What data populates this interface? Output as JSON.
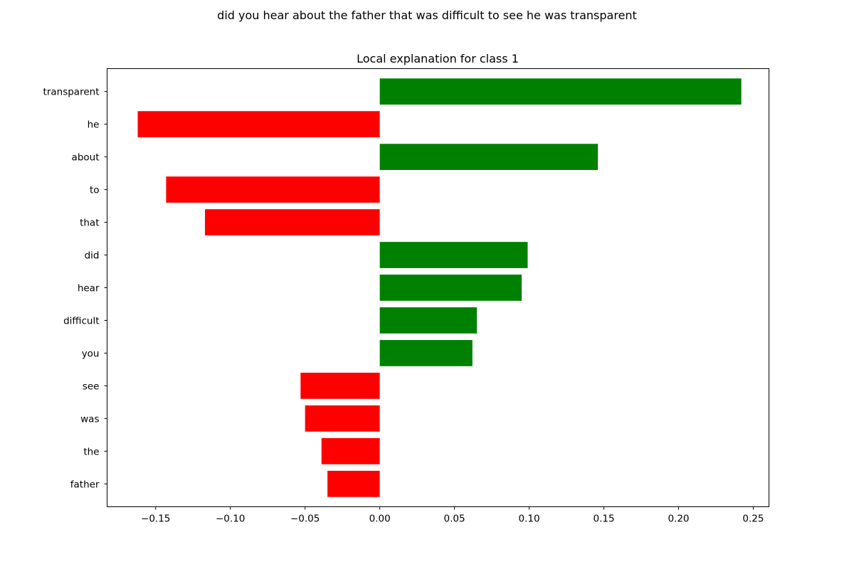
{
  "suptitle": "did you hear about the father that was difficult to see he was transparent",
  "chart_data": {
    "type": "bar",
    "orientation": "horizontal",
    "title": "Local explanation for class 1",
    "xlabel": "",
    "ylabel": "",
    "xlim": [
      -0.1825,
      0.2605
    ],
    "xticks": [
      -0.15,
      -0.1,
      -0.05,
      0.0,
      0.05,
      0.1,
      0.15,
      0.2,
      0.25
    ],
    "xtick_labels": [
      "−0.15",
      "−0.10",
      "−0.05",
      "0.00",
      "0.05",
      "0.10",
      "0.15",
      "0.20",
      "0.25"
    ],
    "categories": [
      "transparent",
      "he",
      "about",
      "to",
      "that",
      "did",
      "hear",
      "difficult",
      "you",
      "see",
      "was",
      "the",
      "father"
    ],
    "values": [
      0.242,
      -0.162,
      0.146,
      -0.143,
      -0.117,
      0.099,
      0.095,
      0.065,
      0.062,
      -0.053,
      -0.05,
      -0.039,
      -0.035
    ],
    "colors": {
      "positive": "#008000",
      "negative": "#ff0000"
    },
    "grid": false,
    "legend": "none"
  }
}
